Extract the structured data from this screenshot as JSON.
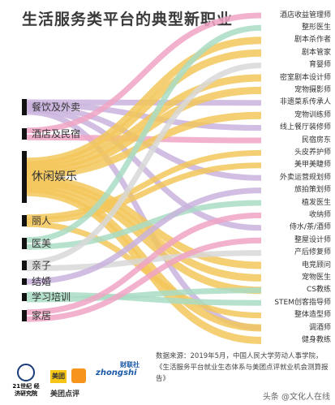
{
  "title": "生活服务类平台的典型新职业",
  "categories": [
    {
      "label": "餐饮及外卖"
    },
    {
      "label": "酒店及民宿"
    },
    {
      "label": "休闲娱乐"
    },
    {
      "label": "丽人"
    },
    {
      "label": "医美"
    },
    {
      "label": "亲子"
    },
    {
      "label": "结婚"
    },
    {
      "label": "学习培训"
    },
    {
      "label": "家居"
    }
  ],
  "jobs": [
    {
      "label": "酒店收益管理师"
    },
    {
      "label": "整形医生"
    },
    {
      "label": "剧本杀作者"
    },
    {
      "label": "剧本管家"
    },
    {
      "label": "育婴师"
    },
    {
      "label": "密室剧本设计师"
    },
    {
      "label": "宠物摄影师"
    },
    {
      "label": "非遗菜系传承人"
    },
    {
      "label": "宠物训练师"
    },
    {
      "label": "线上餐厅装修师"
    },
    {
      "label": "民宿房东"
    },
    {
      "label": "头皮养护师"
    },
    {
      "label": "美甲美睫师"
    },
    {
      "label": "外卖运营规划师"
    },
    {
      "label": "旅拍策划师"
    },
    {
      "label": "植发医生"
    },
    {
      "label": "收纳师"
    },
    {
      "label": "侍水/茶/酒师"
    },
    {
      "label": "整屋设计师"
    },
    {
      "label": "产后修复师"
    },
    {
      "label": "电竞顾问"
    },
    {
      "label": "宠物医生"
    },
    {
      "label": "CS教练"
    },
    {
      "label": "STEM创客指导师"
    },
    {
      "label": "整体造型师"
    },
    {
      "label": "调酒师"
    },
    {
      "label": "健身教练"
    }
  ],
  "flows": [
    [
      0,
      7
    ],
    [
      0,
      9
    ],
    [
      0,
      13
    ],
    [
      0,
      17
    ],
    [
      0,
      25
    ],
    [
      1,
      0
    ],
    [
      1,
      10
    ],
    [
      2,
      2
    ],
    [
      2,
      3
    ],
    [
      2,
      5
    ],
    [
      2,
      6
    ],
    [
      2,
      8
    ],
    [
      2,
      20
    ],
    [
      2,
      21
    ],
    [
      2,
      22
    ],
    [
      2,
      25
    ],
    [
      2,
      26
    ],
    [
      3,
      11
    ],
    [
      3,
      12
    ],
    [
      3,
      24
    ],
    [
      4,
      1
    ],
    [
      4,
      15
    ],
    [
      5,
      4
    ],
    [
      5,
      19
    ],
    [
      6,
      14
    ],
    [
      7,
      23
    ],
    [
      7,
      22
    ],
    [
      8,
      16
    ],
    [
      8,
      18
    ]
  ],
  "colors": {
    "餐饮及外卖": "#c9b3dd",
    "酒店及民宿": "#f0a5c4",
    "休闲娱乐": "#f3c75a",
    "丽人": "#f3c75a",
    "医美": "#a9dcc4",
    "亲子": "#d8d8d8",
    "结婚": "#c9b3dd",
    "学习培训": "#a9dcc4",
    "家居": "#f0a5c4"
  },
  "logos": [
    {
      "text": "21世纪 经济研究院",
      "color": "#1a3a7a"
    },
    {
      "text": "美团",
      "color": "#e0a400"
    },
    {
      "text": "美团点评",
      "color": "#333333"
    },
    {
      "text": "zhongshi",
      "color": "#1a5aa8"
    },
    {
      "text": "财联社",
      "color": "#1a5aa8"
    }
  ],
  "source": "数据来源：2019年5月，中国人民大学劳动人事学院，《生活服务平台就业生态体系与美团点评就业机会测算报告》",
  "watermark": "头条 @文化人在线"
}
